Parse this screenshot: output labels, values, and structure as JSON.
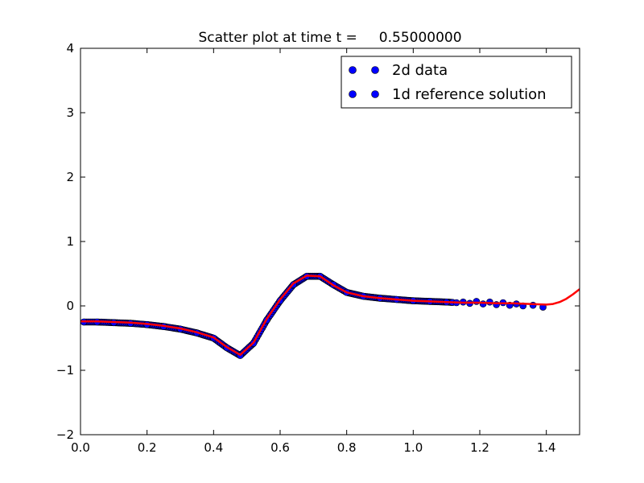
{
  "chart_data": {
    "type": "scatter",
    "title": "Scatter plot at time t =     0.55000000",
    "xlabel": "",
    "ylabel": "",
    "xlim": [
      0.0,
      1.5
    ],
    "ylim": [
      -2,
      4
    ],
    "xticks": [
      "0.0",
      "0.2",
      "0.4",
      "0.6",
      "0.8",
      "1.0",
      "1.2",
      "1.4"
    ],
    "yticks": [
      "−2",
      "−1",
      "0",
      "1",
      "2",
      "3",
      "4"
    ],
    "grid": false,
    "legend_position": "top-right",
    "colors": {
      "scatter_fill": "#0000ff",
      "scatter_edge": "#000000",
      "line": "#ff0000"
    },
    "series": [
      {
        "name": "2d data",
        "kind": "scatter",
        "x": [
          0.01,
          0.05,
          0.1,
          0.15,
          0.2,
          0.25,
          0.3,
          0.35,
          0.4,
          0.44,
          0.48,
          0.52,
          0.56,
          0.6,
          0.64,
          0.68,
          0.72,
          0.76,
          0.8,
          0.85,
          0.9,
          0.95,
          1.0,
          1.05,
          1.1,
          1.13,
          1.15,
          1.17,
          1.19,
          1.21,
          1.23,
          1.25,
          1.27,
          1.29,
          1.31,
          1.33,
          1.36,
          1.39
        ],
        "y": [
          -0.25,
          -0.25,
          -0.26,
          -0.27,
          -0.29,
          -0.32,
          -0.36,
          -0.42,
          -0.5,
          -0.65,
          -0.77,
          -0.58,
          -0.22,
          0.08,
          0.33,
          0.46,
          0.46,
          0.33,
          0.21,
          0.15,
          0.12,
          0.1,
          0.08,
          0.07,
          0.06,
          0.05,
          0.06,
          0.04,
          0.07,
          0.03,
          0.06,
          0.02,
          0.05,
          0.01,
          0.03,
          0.0,
          0.01,
          -0.02
        ]
      },
      {
        "name": "1d reference solution",
        "kind": "line",
        "x": [
          0.0,
          0.05,
          0.1,
          0.15,
          0.2,
          0.25,
          0.3,
          0.35,
          0.4,
          0.44,
          0.48,
          0.52,
          0.56,
          0.6,
          0.64,
          0.68,
          0.72,
          0.76,
          0.8,
          0.85,
          0.9,
          0.95,
          1.0,
          1.05,
          1.1,
          1.15,
          1.2,
          1.25,
          1.3,
          1.35,
          1.4,
          1.42,
          1.44,
          1.46,
          1.48,
          1.5
        ],
        "y": [
          -0.24,
          -0.24,
          -0.25,
          -0.26,
          -0.28,
          -0.31,
          -0.35,
          -0.41,
          -0.49,
          -0.64,
          -0.76,
          -0.57,
          -0.2,
          0.1,
          0.35,
          0.47,
          0.46,
          0.32,
          0.21,
          0.15,
          0.12,
          0.1,
          0.08,
          0.07,
          0.06,
          0.05,
          0.05,
          0.04,
          0.04,
          0.03,
          0.02,
          0.03,
          0.06,
          0.11,
          0.18,
          0.26
        ]
      }
    ]
  }
}
